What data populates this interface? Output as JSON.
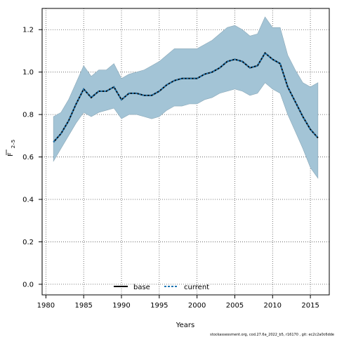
{
  "chart_data": {
    "type": "line",
    "xlabel": "Years",
    "ylabel_main": "F",
    "ylabel_sub": "2–5",
    "xlim": [
      1979.5,
      2017.5
    ],
    "ylim": [
      -0.05,
      1.3
    ],
    "xticks": [
      1980,
      1985,
      1990,
      1995,
      2000,
      2005,
      2010,
      2015
    ],
    "yticks": [
      0.0,
      0.2,
      0.4,
      0.6,
      0.8,
      1.0,
      1.2
    ],
    "grid": true,
    "legend_position": "bottom-center",
    "x": [
      1981,
      1982,
      1983,
      1984,
      1985,
      1986,
      1987,
      1988,
      1989,
      1990,
      1991,
      1992,
      1993,
      1994,
      1995,
      1996,
      1997,
      1998,
      1999,
      2000,
      2001,
      2002,
      2003,
      2004,
      2005,
      2006,
      2007,
      2008,
      2009,
      2010,
      2011,
      2012,
      2013,
      2014,
      2015,
      2016
    ],
    "band": {
      "color": "#a3c4d6",
      "edge_color": "#8aa8b8",
      "lower": [
        0.58,
        0.64,
        0.7,
        0.76,
        0.81,
        0.79,
        0.81,
        0.82,
        0.83,
        0.78,
        0.8,
        0.8,
        0.79,
        0.78,
        0.79,
        0.82,
        0.84,
        0.84,
        0.85,
        0.85,
        0.87,
        0.88,
        0.9,
        0.91,
        0.92,
        0.91,
        0.89,
        0.9,
        0.95,
        0.92,
        0.9,
        0.8,
        0.72,
        0.64,
        0.55,
        0.5
      ],
      "upper": [
        0.79,
        0.81,
        0.87,
        0.95,
        1.03,
        0.98,
        1.01,
        1.01,
        1.04,
        0.97,
        0.99,
        1.0,
        1.01,
        1.03,
        1.05,
        1.08,
        1.11,
        1.11,
        1.11,
        1.11,
        1.13,
        1.15,
        1.18,
        1.21,
        1.22,
        1.2,
        1.17,
        1.18,
        1.26,
        1.21,
        1.21,
        1.08,
        1.01,
        0.95,
        0.93,
        0.95
      ]
    },
    "series": [
      {
        "name": "base",
        "style": "solid",
        "color": "#000000",
        "values": [
          0.67,
          0.71,
          0.77,
          0.85,
          0.92,
          0.88,
          0.91,
          0.91,
          0.93,
          0.87,
          0.9,
          0.9,
          0.89,
          0.89,
          0.91,
          0.94,
          0.96,
          0.97,
          0.97,
          0.97,
          0.99,
          1.0,
          1.02,
          1.05,
          1.06,
          1.05,
          1.02,
          1.03,
          1.09,
          1.06,
          1.04,
          0.93,
          0.86,
          0.79,
          0.73,
          0.69
        ]
      },
      {
        "name": "current",
        "style": "dashed",
        "color": "#1f77b4",
        "values": [
          0.67,
          0.71,
          0.77,
          0.85,
          0.92,
          0.88,
          0.91,
          0.91,
          0.93,
          0.87,
          0.9,
          0.9,
          0.89,
          0.89,
          0.91,
          0.94,
          0.96,
          0.97,
          0.97,
          0.97,
          0.99,
          1.0,
          1.02,
          1.05,
          1.06,
          1.05,
          1.02,
          1.03,
          1.09,
          1.06,
          1.04,
          0.93,
          0.86,
          0.79,
          0.73,
          0.69
        ]
      }
    ]
  },
  "footer_text": "stockassessment.org, cod.27.6a_2022_b5, r16170 , git: ec2c2a0c6dde"
}
